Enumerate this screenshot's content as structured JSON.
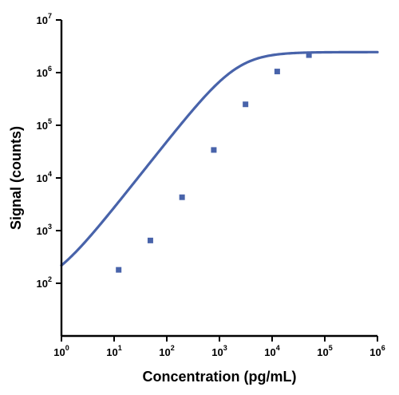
{
  "chart_data": {
    "type": "line",
    "xlabel": "Concentration (pg/mL)",
    "ylabel": "Signal (counts)",
    "x_scale": "log",
    "y_scale": "log",
    "xlim": [
      1,
      1000000
    ],
    "ylim": [
      10,
      10000000
    ],
    "grid": false,
    "x_ticks": [
      {
        "base": "10",
        "exp": "0"
      },
      {
        "base": "10",
        "exp": "1"
      },
      {
        "base": "10",
        "exp": "2"
      },
      {
        "base": "10",
        "exp": "3"
      },
      {
        "base": "10",
        "exp": "4"
      },
      {
        "base": "10",
        "exp": "5"
      },
      {
        "base": "10",
        "exp": "6"
      }
    ],
    "y_ticks": [
      {
        "base": "10",
        "exp": "2"
      },
      {
        "base": "10",
        "exp": "3"
      },
      {
        "base": "10",
        "exp": "4"
      },
      {
        "base": "10",
        "exp": "5"
      },
      {
        "base": "10",
        "exp": "6"
      },
      {
        "base": "10",
        "exp": "7"
      }
    ],
    "series": [
      {
        "type": "scatter",
        "marker": "square",
        "color": "#4863aa",
        "x": [
          12.2,
          48.8,
          195,
          781,
          3125,
          12500,
          50000
        ],
        "y": [
          180,
          650,
          4300,
          34000,
          250000,
          1050000,
          2150000
        ]
      },
      {
        "type": "line",
        "fit": "4PL",
        "color": "#4863aa",
        "bottom": 75,
        "top": 2450000,
        "ec50": 2150,
        "hill": 1.27
      }
    ]
  }
}
